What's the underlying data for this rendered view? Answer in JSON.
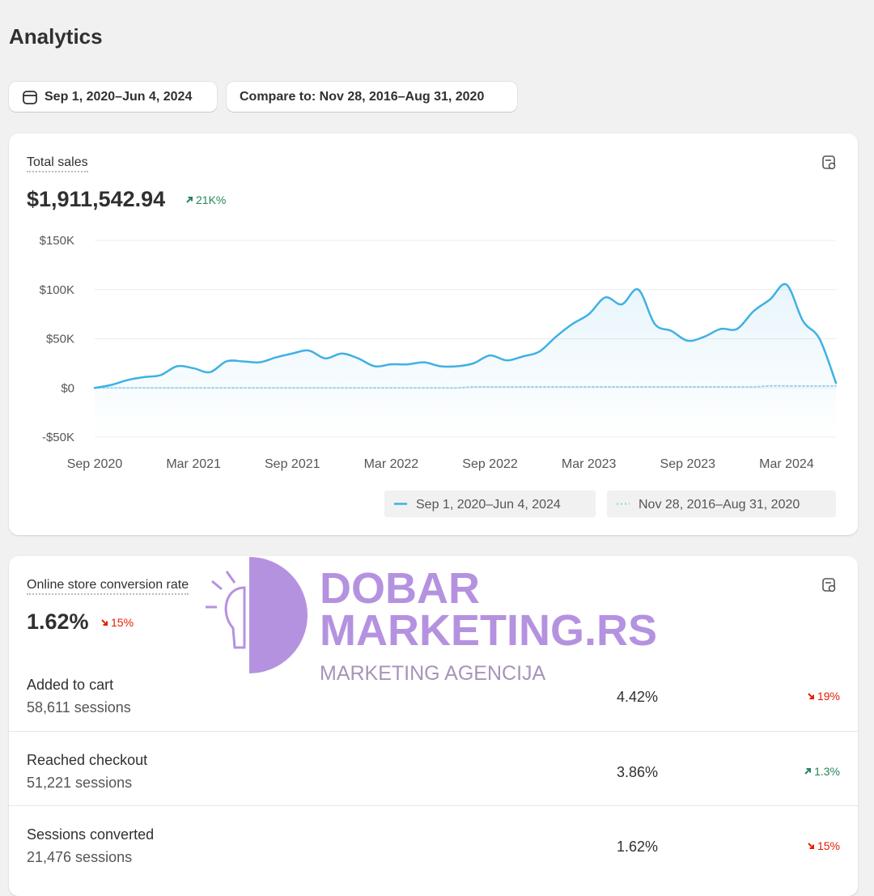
{
  "header": {
    "title": "Analytics"
  },
  "filters": {
    "date_range": "Sep 1, 2020–Jun 4, 2024",
    "compare": "Compare to: Nov 28, 2016–Aug 31, 2020"
  },
  "sales_card": {
    "label": "Total sales",
    "value": "$1,911,542.94",
    "change": "21K%",
    "direction": "up"
  },
  "chart_data": {
    "type": "line",
    "categories": [
      "Sep 2020",
      null,
      null,
      null,
      null,
      null,
      "Mar 2021",
      null,
      null,
      null,
      null,
      null,
      "Sep 2021",
      null,
      null,
      null,
      null,
      null,
      "Mar 2022",
      null,
      null,
      null,
      null,
      null,
      "Sep 2022",
      null,
      null,
      null,
      null,
      null,
      "Mar 2023",
      null,
      null,
      null,
      null,
      null,
      "Sep 2023",
      null,
      null,
      null,
      null,
      null,
      "Mar 2024",
      null,
      null,
      null
    ],
    "series": [
      {
        "name": "Sep 1, 2020–Jun 4, 2024",
        "color": "#3fb1e3",
        "style": "solid",
        "values": [
          0,
          3000,
          8000,
          11000,
          13000,
          22000,
          20000,
          16000,
          27000,
          27000,
          26000,
          31000,
          35000,
          38000,
          30000,
          35000,
          30000,
          22000,
          24000,
          24000,
          26000,
          22000,
          22000,
          25000,
          33000,
          28000,
          32000,
          37000,
          52000,
          65000,
          75000,
          92000,
          85000,
          100000,
          65000,
          58000,
          48000,
          52000,
          60000,
          60000,
          78000,
          90000,
          105000,
          68000,
          50000,
          5000
        ]
      },
      {
        "name": "Nov 28, 2016–Aug 31, 2020",
        "color": "#9fd4ec",
        "style": "dotted",
        "values": [
          0,
          0,
          0,
          0,
          0,
          0,
          0,
          0,
          0,
          0,
          0,
          0,
          0,
          0,
          0,
          0,
          0,
          0,
          0,
          0,
          0,
          0,
          0,
          1000,
          1000,
          1000,
          1000,
          1000,
          1000,
          1000,
          1000,
          1000,
          1000,
          1000,
          1000,
          1000,
          1000,
          1000,
          1000,
          1000,
          1000,
          2000,
          2000,
          2000,
          2000,
          2000
        ]
      }
    ],
    "ylim": [
      -50000,
      150000
    ],
    "yticks": [
      {
        "value": 150000,
        "label": "$150K"
      },
      {
        "value": 100000,
        "label": "$100K"
      },
      {
        "value": 50000,
        "label": "$50K"
      },
      {
        "value": 0,
        "label": "$0"
      },
      {
        "value": -50000,
        "label": "-$50K"
      }
    ],
    "grid": true,
    "legend": "bottom-right"
  },
  "conversion_card": {
    "label": "Online store conversion rate",
    "value": "1.62%",
    "change": "15%",
    "direction": "down",
    "rows": [
      {
        "label": "Added to cart",
        "sessions": "58,611 sessions",
        "rate": "4.42%",
        "change": "19%",
        "direction": "down"
      },
      {
        "label": "Reached checkout",
        "sessions": "51,221 sessions",
        "rate": "3.86%",
        "change": "1.3%",
        "direction": "up"
      },
      {
        "label": "Sessions converted",
        "sessions": "21,476 sessions",
        "rate": "1.62%",
        "change": "15%",
        "direction": "down"
      }
    ]
  },
  "watermark": {
    "line1": "DOBAR",
    "line2": "MARKETING.RS",
    "line3": "MARKETING AGENCIJA"
  }
}
